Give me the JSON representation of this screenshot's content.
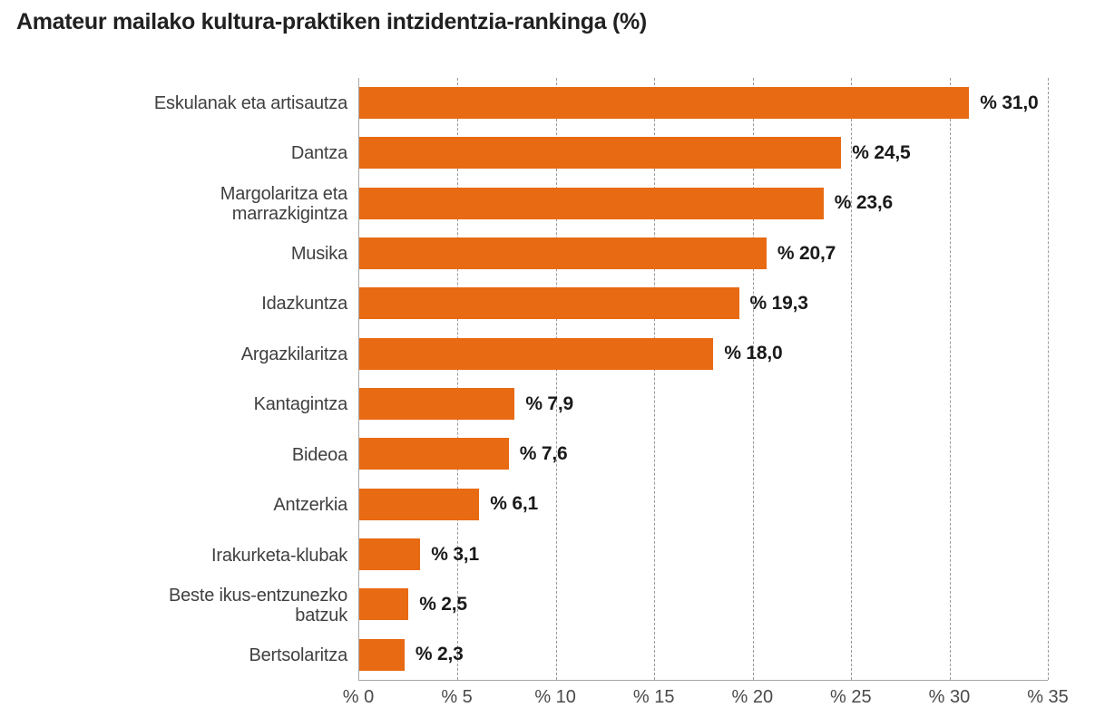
{
  "title": "Amateur mailako kultura-praktiken intzidentzia-rankinga (%)",
  "colors": {
    "bar": "#e86a13",
    "grid": "#999999",
    "axis": "#a6a6a6",
    "title_text": "#212121",
    "category_text": "#404040",
    "tick_text": "#4a4a4a",
    "value_text": "#1a1a1a",
    "background": "#ffffff"
  },
  "chart_data": {
    "type": "bar",
    "orientation": "horizontal",
    "title": "Amateur mailako kultura-praktiken intzidentzia-rankinga (%)",
    "categories": [
      "Eskulanak eta artisautza",
      "Dantza",
      "Margolaritza eta\nmarrazkigintza",
      "Musika",
      "Idazkuntza",
      "Argazkilaritza",
      "Kantagintza",
      "Bideoa",
      "Antzerkia",
      "Irakurketa-klubak",
      "Beste ikus-entzunezko\nbatzuk",
      "Bertsolaritza"
    ],
    "values": [
      31.0,
      24.5,
      23.6,
      20.7,
      19.3,
      18.0,
      7.9,
      7.6,
      6.1,
      3.1,
      2.5,
      2.3
    ],
    "value_labels": [
      "% 31,0",
      "% 24,5",
      "% 23,6",
      "% 20,7",
      "% 19,3",
      "% 18,0",
      "% 7,9",
      "% 7,6",
      "% 6,1",
      "% 3,1",
      "% 2,5",
      "% 2,3"
    ],
    "xlabel": "",
    "ylabel": "",
    "xlim": [
      0,
      35
    ],
    "x_ticks": [
      0,
      5,
      10,
      15,
      20,
      25,
      30,
      35
    ],
    "x_tick_labels": [
      "% 0",
      "% 5",
      "% 10",
      "% 15",
      "% 20",
      "% 25",
      "% 30",
      "% 35"
    ],
    "grid": "vertical-dashed",
    "legend_position": "none"
  }
}
